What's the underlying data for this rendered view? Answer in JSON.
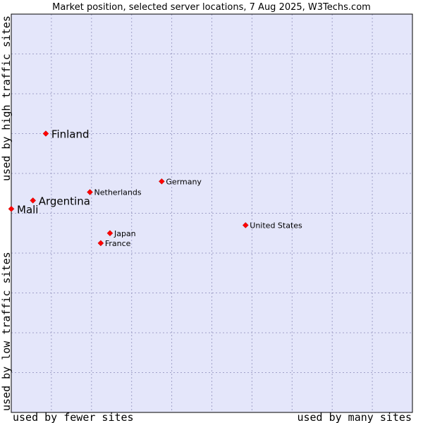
{
  "chart_data": {
    "type": "scatter",
    "title": "Market position, selected server locations, 7 Aug 2025, W3Techs.com",
    "xlabel_left": "used by fewer sites",
    "xlabel_right": "used by many sites",
    "ylabel_top": "used by high traffic sites",
    "ylabel_bottom": "used by low traffic sites",
    "xlim": [
      0,
      10
    ],
    "ylim": [
      0,
      10
    ],
    "grid": true,
    "points": [
      {
        "name": "Finland",
        "x": 0.86,
        "y": 7.0,
        "label_size": "large"
      },
      {
        "name": "Argentina",
        "x": 0.54,
        "y": 5.32,
        "label_size": "large"
      },
      {
        "name": "Mali",
        "x": 0.0,
        "y": 5.11,
        "label_size": "large"
      },
      {
        "name": "Netherlands",
        "x": 1.96,
        "y": 5.53,
        "label_size": "small"
      },
      {
        "name": "Germany",
        "x": 3.75,
        "y": 5.8,
        "label_size": "small"
      },
      {
        "name": "United States",
        "x": 5.84,
        "y": 4.7,
        "label_size": "small"
      },
      {
        "name": "Japan",
        "x": 2.46,
        "y": 4.5,
        "label_size": "small"
      },
      {
        "name": "France",
        "x": 2.23,
        "y": 4.25,
        "label_size": "small"
      }
    ],
    "colors": {
      "plot_background": "#e4e6fa",
      "point": "#ff0000",
      "grid": "#a0a0c8",
      "border": "#000000"
    }
  }
}
